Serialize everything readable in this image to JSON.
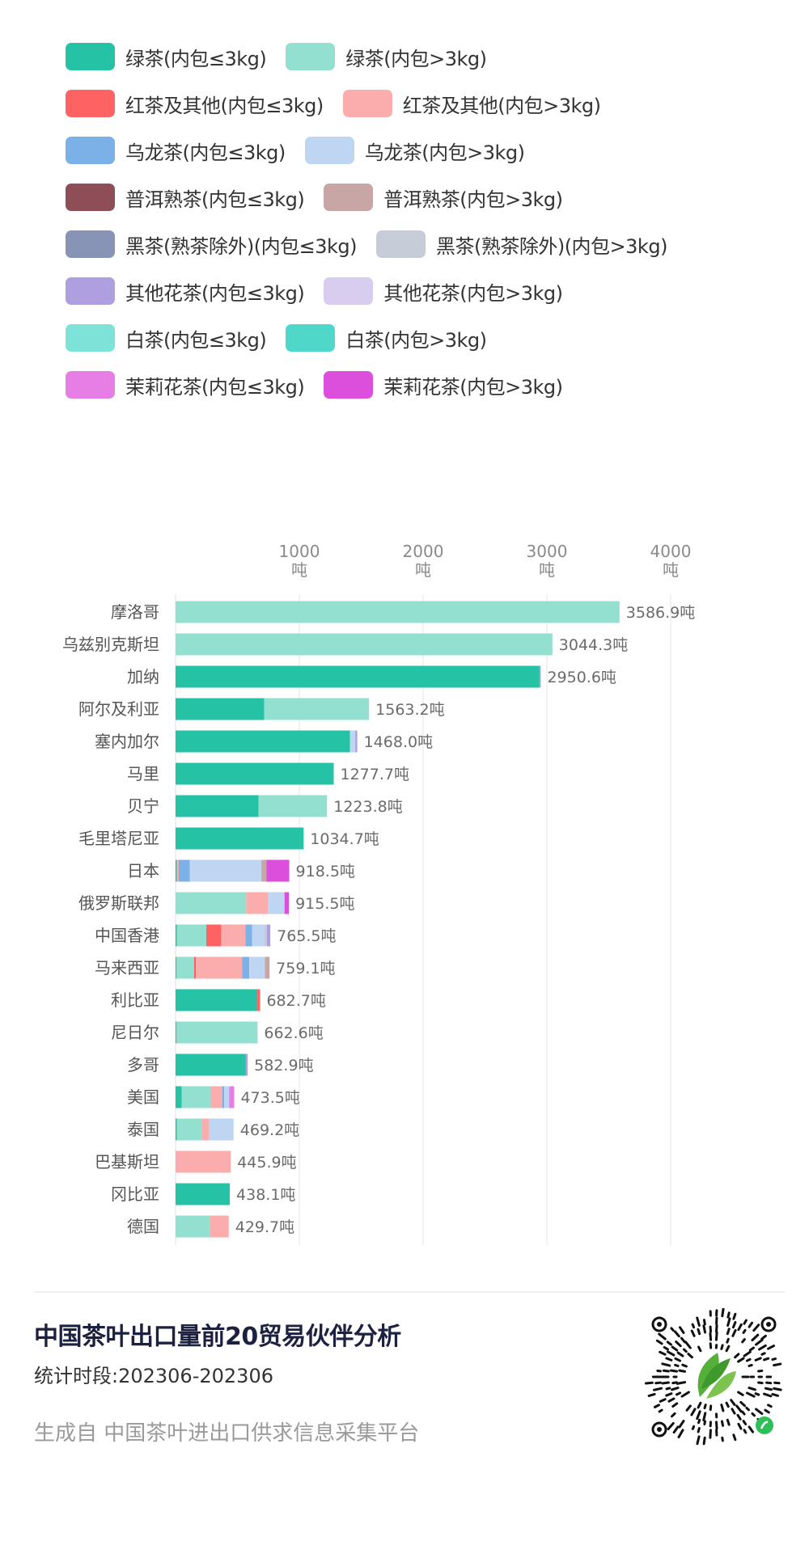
{
  "legend": [
    [
      {
        "label": "绿茶(内包≤3kg)",
        "color": "#26c2a5"
      },
      {
        "label": "绿茶(内包>3kg)",
        "color": "#93e0d1"
      }
    ],
    [
      {
        "label": "红茶及其他(内包≤3kg)",
        "color": "#ff6262"
      },
      {
        "label": "红茶及其他(内包>3kg)",
        "color": "#fbadae"
      }
    ],
    [
      {
        "label": "乌龙茶(内包≤3kg)",
        "color": "#7bb1e6"
      },
      {
        "label": "乌龙茶(内包>3kg)",
        "color": "#bed6f2"
      }
    ],
    [
      {
        "label": "普洱熟茶(内包≤3kg)",
        "color": "#8e4e58"
      },
      {
        "label": "普洱熟茶(内包>3kg)",
        "color": "#c9a6a6"
      }
    ],
    [
      {
        "label": "黑茶(熟茶除外)(内包≤3kg)",
        "color": "#8894b5"
      },
      {
        "label": "黑茶(熟茶除外)(内包>3kg)",
        "color": "#c7ccd9"
      }
    ],
    [
      {
        "label": "其他花茶(内包≤3kg)",
        "color": "#af9ee0"
      },
      {
        "label": "其他花茶(内包>3kg)",
        "color": "#d8cdef"
      }
    ],
    [
      {
        "label": "白茶(内包≤3kg)",
        "color": "#7de3d8"
      },
      {
        "label": "白茶(内包>3kg)",
        "color": "#4fd8c9"
      }
    ],
    [
      {
        "label": "茉莉花茶(内包≤3kg)",
        "color": "#e77ee6"
      },
      {
        "label": "茉莉花茶(内包>3kg)",
        "color": "#dc4fdc"
      }
    ]
  ],
  "chart_data": {
    "type": "bar",
    "orientation": "horizontal",
    "stacked": true,
    "xlim": [
      0,
      4000
    ],
    "xticks": [
      {
        "value": 1000,
        "label": "1000",
        "unit": "吨"
      },
      {
        "value": 2000,
        "label": "2000",
        "unit": "吨"
      },
      {
        "value": 3000,
        "label": "3000",
        "unit": "吨"
      },
      {
        "value": 4000,
        "label": "4000",
        "unit": "吨"
      }
    ],
    "grid": true,
    "legend_position": "top",
    "categories": [
      "摩洛哥",
      "乌兹别克斯坦",
      "加纳",
      "阿尔及利亚",
      "塞内加尔",
      "马里",
      "贝宁",
      "毛里塔尼亚",
      "日本",
      "俄罗斯联邦",
      "中国香港",
      "马来西亚",
      "利比亚",
      "尼日尔",
      "多哥",
      "美国",
      "泰国",
      "巴基斯坦",
      "冈比亚",
      "德国"
    ],
    "totals": [
      "3586.9吨",
      "3044.3吨",
      "2950.6吨",
      "1563.2吨",
      "1468.0吨",
      "1277.7吨",
      "1223.8吨",
      "1034.7吨",
      "918.5吨",
      "915.5吨",
      "765.5吨",
      "759.1吨",
      "682.7吨",
      "662.6吨",
      "582.9吨",
      "473.5吨",
      "469.2吨",
      "445.9吨",
      "438.1吨",
      "429.7吨"
    ],
    "series": [
      {
        "name": "绿茶(内包≤3kg)",
        "color": "#26c2a5",
        "values": [
          0,
          0,
          2940.6,
          717,
          1410,
          1277.7,
          671,
          1034.7,
          11,
          0,
          11,
          6,
          660.7,
          8,
          567.9,
          50,
          11,
          0,
          438.1,
          0
        ]
      },
      {
        "name": "绿茶(内包>3kg)",
        "color": "#93e0d1",
        "values": [
          3586.9,
          3044.3,
          0,
          846.2,
          0,
          0,
          552.8,
          0,
          0,
          570.5,
          237.5,
          144,
          0,
          654.6,
          0,
          234.5,
          200,
          0,
          0,
          277
        ]
      },
      {
        "name": "红茶及其他(内包≤3kg)",
        "color": "#ff6262",
        "values": [
          0,
          0,
          0,
          0,
          0,
          0,
          0,
          0,
          0,
          0,
          120,
          15,
          22,
          0,
          0,
          0,
          0,
          0,
          0,
          0
        ]
      },
      {
        "name": "红茶及其他(内包>3kg)",
        "color": "#fbadae",
        "values": [
          0,
          0,
          0,
          0,
          0,
          0,
          0,
          0,
          15,
          179,
          196,
          374.1,
          0,
          0,
          0,
          92,
          61,
          445.9,
          0,
          152.7
        ]
      },
      {
        "name": "乌龙茶(内包≤3kg)",
        "color": "#7bb1e6",
        "values": [
          0,
          0,
          0,
          0,
          0,
          0,
          0,
          0,
          90,
          0,
          55,
          57,
          0,
          0,
          0,
          17,
          0,
          0,
          0,
          0
        ]
      },
      {
        "name": "乌龙茶(内包>3kg)",
        "color": "#bed6f2",
        "values": [
          0,
          0,
          0,
          0,
          42,
          0,
          0,
          0,
          577.5,
          131,
          96,
          126,
          0,
          0,
          0,
          39,
          197.2,
          0,
          0,
          0
        ]
      },
      {
        "name": "普洱熟茶(内包≤3kg)",
        "color": "#8e4e58",
        "values": [
          0,
          0,
          0,
          0,
          0,
          0,
          0,
          0,
          0,
          0,
          0,
          0,
          0,
          0,
          0,
          0,
          0,
          0,
          0,
          0
        ]
      },
      {
        "name": "普洱熟茶(内包>3kg)",
        "color": "#c9a6a6",
        "values": [
          0,
          0,
          0,
          0,
          0,
          0,
          0,
          0,
          40,
          0,
          0,
          37,
          0,
          0,
          0,
          0,
          0,
          0,
          0,
          0
        ]
      },
      {
        "name": "黑茶(熟茶除外)(内包≤3kg)",
        "color": "#8894b5",
        "values": [
          0,
          0,
          0,
          0,
          0,
          0,
          0,
          0,
          0,
          0,
          0,
          0,
          0,
          0,
          0,
          0,
          0,
          0,
          0,
          0
        ]
      },
      {
        "name": "黑茶(熟茶除外)(内包>3kg)",
        "color": "#c7ccd9",
        "values": [
          0,
          0,
          0,
          0,
          0,
          0,
          0,
          0,
          0,
          0,
          22,
          0,
          0,
          0,
          0,
          0,
          0,
          0,
          0,
          0
        ]
      },
      {
        "name": "其他花茶(内包≤3kg)",
        "color": "#af9ee0",
        "values": [
          0,
          0,
          10,
          0,
          16,
          0,
          0,
          0,
          0,
          0,
          28,
          0,
          0,
          0,
          15,
          0,
          0,
          0,
          0,
          0
        ]
      },
      {
        "name": "其他花茶(内包>3kg)",
        "color": "#d8cdef",
        "values": [
          0,
          0,
          0,
          0,
          0,
          0,
          0,
          0,
          0,
          0,
          0,
          0,
          0,
          0,
          0,
          0,
          0,
          0,
          0,
          0
        ]
      },
      {
        "name": "白茶(内包≤3kg)",
        "color": "#7de3d8",
        "values": [
          0,
          0,
          0,
          0,
          0,
          0,
          0,
          0,
          0,
          0,
          0,
          0,
          0,
          0,
          0,
          0,
          0,
          0,
          0,
          0
        ]
      },
      {
        "name": "白茶(内包>3kg)",
        "color": "#4fd8c9",
        "values": [
          0,
          0,
          0,
          0,
          0,
          0,
          0,
          0,
          0,
          0,
          0,
          0,
          0,
          0,
          0,
          0,
          0,
          0,
          0,
          0
        ]
      },
      {
        "name": "茉莉花茶(内包≤3kg)",
        "color": "#e77ee6",
        "values": [
          0,
          0,
          0,
          0,
          0,
          0,
          0,
          0,
          0,
          0,
          0,
          0,
          0,
          0,
          0,
          41,
          0,
          0,
          0,
          0
        ]
      },
      {
        "name": "茉莉花茶(内包>3kg)",
        "color": "#dc4fdc",
        "values": [
          0,
          0,
          0,
          0,
          0,
          0,
          0,
          0,
          185,
          35,
          0,
          0,
          0,
          0,
          0,
          0,
          0,
          0,
          0,
          0
        ]
      }
    ]
  },
  "footer": {
    "title": "中国茶叶出口量前20贸易伙伴分析",
    "period": "统计时段:202306-202306",
    "source": "生成自 中国茶叶进出口供求信息采集平台",
    "qr_icon": "mini-program-qr-code"
  }
}
